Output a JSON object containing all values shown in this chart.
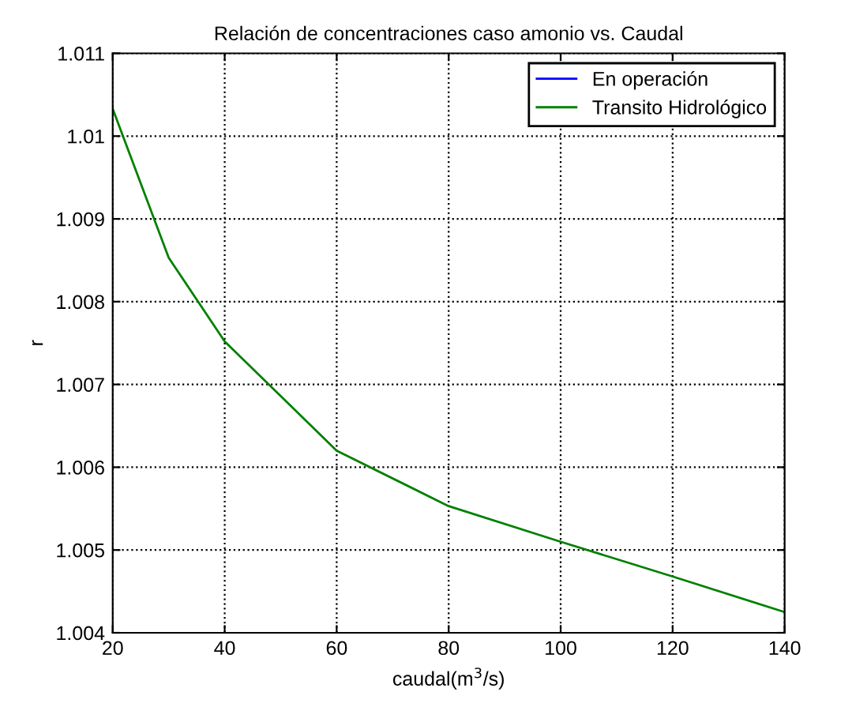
{
  "chart_data": {
    "type": "line",
    "title": "Relación de concentraciones caso amonio vs. Caudal",
    "xlabel": "caudal(m$^{3}$/s)",
    "ylabel": "r",
    "x": [
      20,
      30,
      40,
      60,
      80,
      100,
      120,
      140
    ],
    "series": [
      {
        "name": "En operación",
        "color": "#0000ff",
        "values": [
          null,
          null,
          null,
          null,
          null,
          null,
          null,
          null
        ]
      },
      {
        "name": "Transito Hidrológico",
        "color": "#008000",
        "values": [
          1.01033,
          1.00853,
          1.00752,
          1.0062,
          1.00553,
          1.0051,
          1.00468,
          1.00425
        ]
      }
    ],
    "xlim": [
      20,
      140
    ],
    "xticks": [
      20,
      40,
      60,
      80,
      100,
      120,
      140
    ],
    "ylim": [
      1.004,
      1.011
    ],
    "yticks": [
      1.004,
      1.005,
      1.006,
      1.007,
      1.008,
      1.009,
      1.01,
      1.011
    ],
    "grid": true,
    "legend": "top right",
    "line_style": "solid",
    "marker": "none"
  }
}
